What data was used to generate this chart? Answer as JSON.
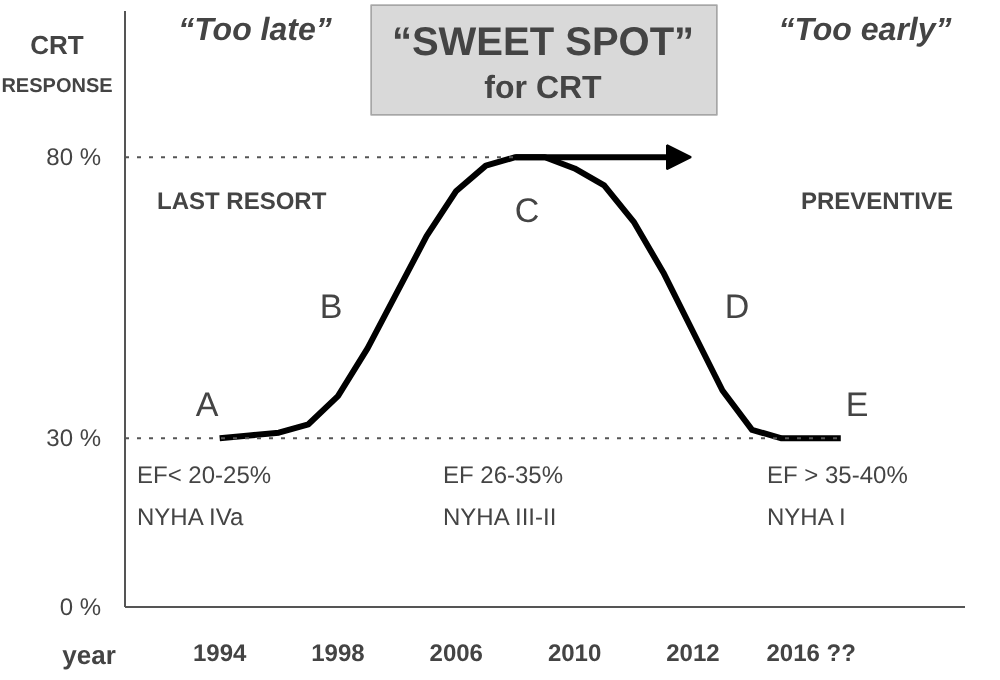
{
  "chart_data": {
    "type": "line",
    "title": "“SWEET SPOT”\nfor CRT",
    "ylabel": "CRT\nRESPONSE",
    "xlabel": "year",
    "categories": [
      "1994",
      null,
      null,
      null,
      "1998",
      null,
      null,
      null,
      "2006",
      null,
      null,
      null,
      "2010",
      null,
      null,
      null,
      "2012",
      null,
      null,
      null,
      "2016 ??",
      null
    ],
    "ylim": [
      0,
      106
    ],
    "yticks": [
      {
        "value": 0,
        "label": "0 %"
      },
      {
        "value": 30,
        "label": "30 %"
      },
      {
        "value": 80,
        "label": "80 %"
      }
    ],
    "grid": false,
    "series": [
      {
        "color": "#000000",
        "values": [
          30,
          30.5,
          31,
          32.5,
          37.5,
          46,
          56,
          66,
          74,
          78.5,
          80,
          80,
          78,
          75,
          68.5,
          59.5,
          49,
          38.5,
          31.5,
          30,
          30,
          30
        ]
      }
    ],
    "ref_lines": [
      {
        "axis": "y",
        "value": 80,
        "color": "#555555",
        "line_style": "dotted"
      },
      {
        "axis": "y",
        "value": 30,
        "color": "#555555",
        "line_style": "dotted"
      }
    ],
    "annotations": [
      "“Too late”",
      "“Too early”",
      "LAST RESORT",
      "PREVENTIVE",
      "A",
      "B",
      "C",
      "D",
      "E",
      "EF< 20-25%\nNYHA IVa",
      "EF 26-35%\nNYHA III-II",
      "EF > 35-40%\nNYHA I"
    ]
  }
}
